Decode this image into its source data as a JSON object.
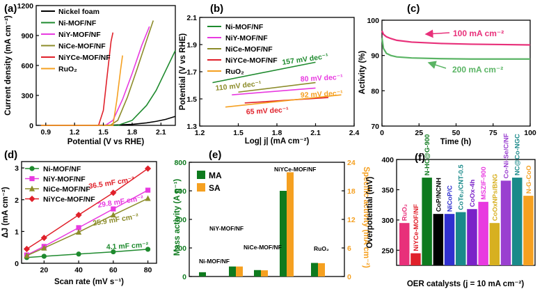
{
  "colors": {
    "black": "#000000",
    "green": "#1e8a2e",
    "magenta": "#e83ae0",
    "olive": "#8c8c2a",
    "red": "#e0202a",
    "orange": "#f5a020",
    "pink": "#e8307a",
    "green2": "#5ab464",
    "blue": "#3030d0",
    "darkgreen": "#0e7a1e",
    "mustard": "#d7b020",
    "lightorange": "#f7b85a",
    "lime": "#8ad03a",
    "purple": "#7a22c8",
    "violet": "#9a40d0",
    "teal": "#1a8a8a",
    "cyan": "#1ab4c8"
  },
  "chart_data": [
    {
      "panel": "(a)",
      "type": "line",
      "xlabel": "Potential (V vs RHE)",
      "ylabel": "Current density (mA cm⁻²)",
      "xlim": [
        0.8,
        2.25
      ],
      "ylim": [
        0,
        1200
      ],
      "xticks": [
        "0.9",
        "1.2",
        "1.5",
        "1.8",
        "2.1"
      ],
      "yticks": [
        "0",
        "300",
        "600",
        "900",
        "1200"
      ],
      "series": [
        {
          "name": "Nickel foam",
          "color": "black",
          "x": [
            0.85,
            1.3,
            1.6,
            1.8,
            1.95,
            2.05,
            2.15,
            2.25
          ],
          "y": [
            0,
            0,
            3,
            10,
            25,
            40,
            60,
            90
          ]
        },
        {
          "name": "Ni-MOF/NF",
          "color": "green",
          "x": [
            0.85,
            1.65,
            1.8,
            1.95,
            2.05,
            2.15,
            2.25
          ],
          "y": [
            0,
            0,
            50,
            200,
            350,
            550,
            750
          ]
        },
        {
          "name": "NiY-MOF/NF",
          "color": "magenta",
          "x": [
            0.85,
            1.52,
            1.6,
            1.7,
            1.8,
            1.9,
            1.98
          ],
          "y": [
            0,
            0,
            50,
            260,
            520,
            800,
            990
          ]
        },
        {
          "name": "NiCe-MOF/NF",
          "color": "olive",
          "x": [
            0.85,
            1.57,
            1.65,
            1.75,
            1.85,
            1.95,
            2.02
          ],
          "y": [
            0,
            0,
            50,
            280,
            560,
            850,
            1050
          ]
        },
        {
          "name": "NiYCe-MOF/NF",
          "color": "red",
          "x": [
            0.85,
            1.45,
            1.5,
            1.54,
            1.58,
            1.6
          ],
          "y": [
            0,
            0,
            150,
            500,
            840,
            930
          ]
        },
        {
          "name": "RuO₂",
          "color": "orange",
          "x": [
            0.85,
            1.6,
            1.64,
            1.68,
            1.7
          ],
          "y": [
            0,
            0,
            250,
            560,
            700
          ]
        }
      ]
    },
    {
      "panel": "(b)",
      "type": "line",
      "xlabel": "Log| j| (mA cm⁻²)",
      "ylabel": "Potential (V vs RHE)",
      "xlim": [
        1.2,
        2.4
      ],
      "ylim": [
        1.3,
        2.1
      ],
      "xticks": [
        "1.2",
        "1.5",
        "1.8",
        "2.1",
        "2.4"
      ],
      "yticks": [
        "1.3",
        "1.5",
        "1.7",
        "1.9",
        "2.1"
      ],
      "series": [
        {
          "name": "Ni-MOF/NF",
          "color": "green",
          "x": [
            1.3,
            2.1
          ],
          "y": [
            1.62,
            1.77
          ]
        },
        {
          "name": "NiY-MOF/NF",
          "color": "magenta",
          "x": [
            1.45,
            2.1
          ],
          "y": [
            1.53,
            1.58
          ]
        },
        {
          "name": "NiCe-MOF/NF",
          "color": "olive",
          "x": [
            1.5,
            2.1
          ],
          "y": [
            1.55,
            1.62
          ]
        },
        {
          "name": "NiYCe-MOF/NF",
          "color": "red",
          "x": [
            1.55,
            2.2
          ],
          "y": [
            1.47,
            1.51
          ]
        },
        {
          "name": "RuO₂",
          "color": "orange",
          "x": [
            1.4,
            2.3
          ],
          "y": [
            1.44,
            1.53
          ]
        }
      ],
      "annotations": [
        "157 mV dec⁻¹",
        "110 mV dec⁻¹",
        "80 mV dec⁻¹",
        "92 mV dec⁻¹",
        "65 mV dec⁻¹"
      ]
    },
    {
      "panel": "(c)",
      "type": "line",
      "xlabel": "Time (h)",
      "ylabel": "Activity (%)",
      "xlim": [
        0,
        100
      ],
      "ylim": [
        70,
        100
      ],
      "xticks": [
        "0",
        "25",
        "50",
        "75",
        "100"
      ],
      "yticks": [
        "70",
        "80",
        "90",
        "100"
      ],
      "series": [
        {
          "name": "100 mA cm⁻²",
          "color": "pink",
          "x": [
            0,
            1,
            3,
            6,
            10,
            20,
            40,
            60,
            80,
            100
          ],
          "y": [
            97,
            96,
            95.3,
            94.8,
            94.3,
            93.8,
            93.4,
            93.2,
            93.1,
            93
          ]
        },
        {
          "name": "200 mA cm⁻²",
          "color": "green2",
          "x": [
            0,
            1,
            3,
            6,
            10,
            20,
            40,
            60,
            80,
            100
          ],
          "y": [
            95,
            92,
            90.6,
            90,
            89.6,
            89.3,
            89.1,
            89,
            89,
            89
          ]
        }
      ]
    },
    {
      "panel": "(d)",
      "type": "scatter",
      "xlabel": "Scan rate (mV s⁻¹)",
      "ylabel": "ΔJ (mA cm⁻²)",
      "xlim": [
        7,
        85
      ],
      "ylim": [
        0,
        3.2
      ],
      "xticks": [
        "20",
        "40",
        "60",
        "80"
      ],
      "yticks": [
        "0",
        "1",
        "2",
        "3"
      ],
      "x": [
        10,
        20,
        40,
        60,
        80
      ],
      "series": [
        {
          "name": "Ni-MOF/NF",
          "color": "green",
          "marker": "circle",
          "y": [
            0.18,
            0.22,
            0.29,
            0.36,
            0.44
          ],
          "slope_label": "4.1 mF cm⁻²"
        },
        {
          "name": "NiY-MOF/NF",
          "color": "magenta",
          "marker": "square",
          "y": [
            0.26,
            0.53,
            1.12,
            1.71,
            2.3
          ],
          "slope_label": "29.8 mF cm⁻²"
        },
        {
          "name": "NiCe-MOF/NF",
          "color": "olive",
          "marker": "triangle",
          "y": [
            0.24,
            0.48,
            0.98,
            1.52,
            2.04
          ],
          "slope_label": "25.9 mF cm⁻²"
        },
        {
          "name": "NiYCe-MOF/NF",
          "color": "red",
          "marker": "diamond",
          "y": [
            0.45,
            0.8,
            1.52,
            2.22,
            2.98
          ],
          "slope_label": "36.5 mF cm⁻²"
        }
      ]
    },
    {
      "panel": "(e)",
      "type": "bar",
      "categories": [
        "Ni-MOF/NF",
        "NiY-MOF/NF",
        "NiCe-MOF/NF",
        "NiYCe-MOF/NF",
        "RuO₂"
      ],
      "ylabel_left": "Mass activity (A g⁻¹)",
      "ylabel_right": "Specific activity (mA cm⁻²)",
      "ylim_left": [
        0,
        800
      ],
      "ylim_right": [
        0,
        24
      ],
      "yticks_left": [
        "0",
        "200",
        "400",
        "600",
        "800"
      ],
      "yticks_right": [
        "0",
        "6",
        "12",
        "18",
        "24"
      ],
      "series": [
        {
          "name": "MA",
          "color": "darkgreen",
          "axis": "left",
          "values": [
            30,
            70,
            45,
            600,
            95
          ]
        },
        {
          "name": "SA",
          "color": "orange",
          "axis": "right",
          "values": [
            0,
            2.1,
            1.3,
            21.9,
            2.8
          ]
        }
      ]
    },
    {
      "panel": "(f)",
      "type": "bar",
      "xlabel": "OER catalysts (j = 10 mA cm⁻²)",
      "ylabel": "Overpotential (mV)",
      "ylim": [
        225,
        400
      ],
      "yticks": [
        "250",
        "300",
        "350",
        "400"
      ],
      "categories": [
        "RuO₂",
        "NiYCe-MOF/NF",
        "N-HC@G-900",
        "CoP/NCNH",
        "NiCoP/C",
        "CoTe₂/CNT-0.5",
        "CoOx-4h",
        "MSZIF-900",
        "CoOxNPs/BNG",
        "Co-Ni-Se/C/NF",
        "NC@Co-NGC",
        "N-G-CoO"
      ],
      "values": [
        295,
        245,
        370,
        310,
        310,
        313,
        318,
        330,
        295,
        365,
        370,
        340
      ],
      "colors": [
        "pink",
        "red",
        "darkgreen",
        "black",
        "blue",
        "teal",
        "purple",
        "magenta",
        "mustard",
        "violet",
        "teal",
        "orange"
      ]
    }
  ]
}
